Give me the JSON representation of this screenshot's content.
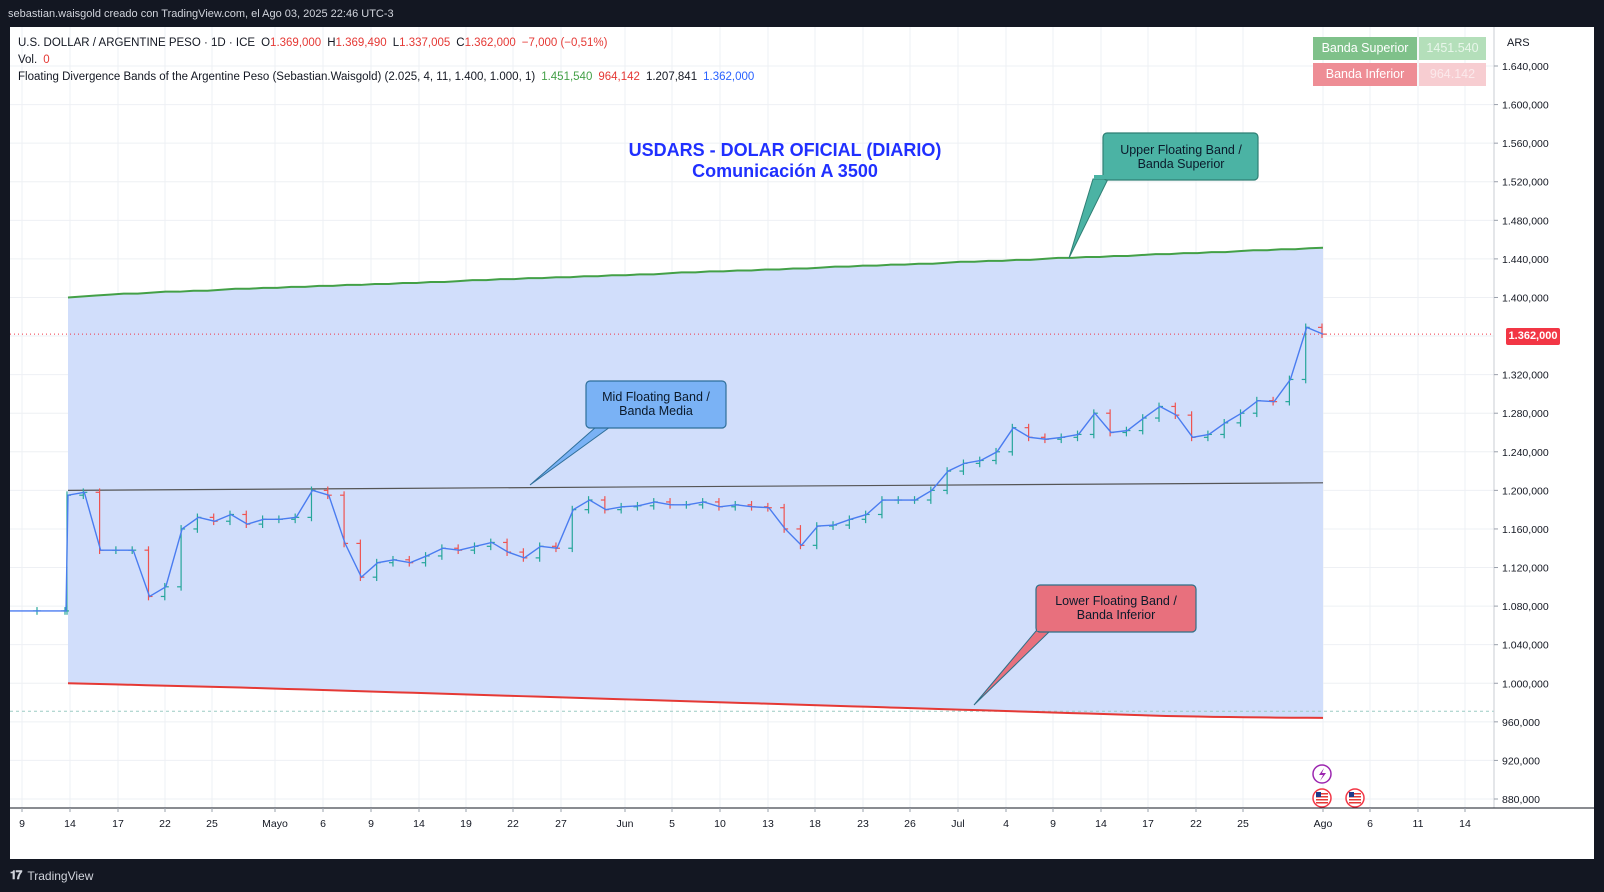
{
  "header": {
    "caption": "sebastian.waisgold creado con TradingView.com, el Ago 03, 2025 22:46 UTC-3"
  },
  "legend": {
    "symbol_line": {
      "symbol": "U.S. DOLLAR / ARGENTINE PESO · 1D · ICE",
      "open_label": "O",
      "open": "1.369,000",
      "high_label": "H",
      "high": "1.369,490",
      "low_label": "L",
      "low": "1.337,005",
      "close_label": "C",
      "close": "1.362,000",
      "change": "−7,000 (−0,51%)"
    },
    "volume_label": "Vol.",
    "volume_value": "0",
    "indicator_name": "Floating Divergence Bands of the Argentine Peso (Sebastian.Waisgold) (2.025, 4, 11, 1.400, 1.000, 1)",
    "indicator_values": [
      "1.451,540",
      "964,142",
      "1.207,841",
      "1.362,000"
    ]
  },
  "band_boxes": {
    "upper_label": "Banda Superior",
    "upper_value": "1451.540",
    "lower_label": "Banda Inferior",
    "lower_value": "964.142"
  },
  "price_scale": {
    "currency": "ARS",
    "last_price_label": "1.362,000",
    "ticks": [
      {
        "v": 1640,
        "label": "1.640,000"
      },
      {
        "v": 1600,
        "label": "1.600,000"
      },
      {
        "v": 1560,
        "label": "1.560,000"
      },
      {
        "v": 1520,
        "label": "1.520,000"
      },
      {
        "v": 1480,
        "label": "1.480,000"
      },
      {
        "v": 1440,
        "label": "1.440,000"
      },
      {
        "v": 1400,
        "label": "1.400,000"
      },
      {
        "v": 1320,
        "label": "1.320,000"
      },
      {
        "v": 1280,
        "label": "1.280,000"
      },
      {
        "v": 1240,
        "label": "1.240,000"
      },
      {
        "v": 1200,
        "label": "1.200,000"
      },
      {
        "v": 1160,
        "label": "1.160,000"
      },
      {
        "v": 1120,
        "label": "1.120,000"
      },
      {
        "v": 1080,
        "label": "1.080,000"
      },
      {
        "v": 1040,
        "label": "1.040,000"
      },
      {
        "v": 1000,
        "label": "1.000,000"
      },
      {
        "v": 960,
        "label": "960,000"
      },
      {
        "v": 920,
        "label": "920,000"
      },
      {
        "v": 880,
        "label": "880,000"
      }
    ]
  },
  "chart_title": {
    "line1": "USDARS - DOLAR OFICIAL (DIARIO)",
    "line2": "Comunicación A 3500"
  },
  "callouts": {
    "upper": {
      "line1": "Upper Floating Band /",
      "line2": "Banda Superior"
    },
    "mid": {
      "line1": "Mid Floating Band /",
      "line2": "Banda Media"
    },
    "lower": {
      "line1": "Lower Floating Band /",
      "line2": "Banda Inferior"
    }
  },
  "footer": {
    "brand": "TradingView"
  },
  "colors": {
    "upper_band": "#43a047",
    "lower_band": "#e53935",
    "mid_band": "#555555",
    "fill": "#cfdcfb",
    "price_line": "#4a7cf0",
    "up_bar": "#26a69a",
    "down_bar": "#ef5350",
    "upper_callout": "#4bb3a4",
    "mid_callout": "#7ab2f5",
    "lower_callout": "#e8707d"
  },
  "chart_data": {
    "type": "line",
    "title": "USDARS - DOLAR OFICIAL (DIARIO)",
    "subtitle": "Comunicación A 3500",
    "x_ticks": [
      "9",
      "14",
      "17",
      "22",
      "25",
      "Mayo",
      "6",
      "9",
      "14",
      "19",
      "22",
      "27",
      "Jun",
      "5",
      "10",
      "13",
      "18",
      "23",
      "26",
      "Jul",
      "4",
      "9",
      "14",
      "17",
      "22",
      "25",
      "Ago",
      "6",
      "11",
      "14"
    ],
    "ylim": [
      870,
      1660
    ],
    "series": [
      {
        "name": "Banda Superior",
        "values": [
          1400,
          1401,
          1402,
          1403,
          1404,
          1404,
          1405,
          1406,
          1406,
          1407,
          1407,
          1408,
          1409,
          1409,
          1410,
          1410,
          1411,
          1411,
          1412,
          1412,
          1413,
          1413,
          1414,
          1414,
          1415,
          1415,
          1416,
          1416,
          1417,
          1418,
          1418,
          1419,
          1419,
          1420,
          1420,
          1421,
          1421,
          1422,
          1422,
          1423,
          1423,
          1424,
          1424,
          1425,
          1426,
          1426,
          1427,
          1427,
          1428,
          1428,
          1429,
          1429,
          1430,
          1430,
          1431,
          1432,
          1432,
          1433,
          1433,
          1434,
          1434,
          1435,
          1435,
          1436,
          1437,
          1437,
          1438,
          1438,
          1439,
          1439,
          1440,
          1441,
          1441,
          1442,
          1442,
          1443,
          1443,
          1444,
          1445,
          1445,
          1446,
          1446,
          1447,
          1447,
          1448,
          1449,
          1449,
          1450,
          1450,
          1451,
          1451.54
        ]
      },
      {
        "name": "Banda Inferior",
        "values": [
          1000,
          999.6,
          999.2,
          998.8,
          998.4,
          998,
          997.6,
          997.2,
          996.8,
          996.4,
          996,
          995.6,
          995.1,
          994.6,
          994.1,
          993.6,
          993.1,
          992.6,
          992.1,
          991.6,
          991.1,
          990.6,
          990.1,
          989.6,
          989.1,
          988.6,
          988.1,
          987.6,
          987.1,
          986.6,
          986.1,
          985.6,
          985.1,
          984.6,
          984.1,
          983.6,
          983.1,
          982.6,
          982.1,
          981.6,
          981.1,
          980.6,
          980.1,
          979.6,
          979.1,
          978.6,
          978.1,
          977.6,
          977.1,
          976.6,
          976.1,
          975.6,
          975.1,
          974.6,
          974.1,
          973.6,
          973.1,
          972.6,
          972.1,
          971.6,
          971.1,
          970.6,
          970.1,
          969.6,
          969.1,
          968.6,
          968.1,
          967.6,
          967.1,
          966.6,
          966.1,
          965.8,
          965.5,
          965.2,
          965,
          964.8,
          964.6,
          964.4,
          964.3,
          964.2,
          964.142
        ]
      },
      {
        "name": "Banda Media",
        "values": [
          1200,
          1207.841
        ]
      },
      {
        "name": "U.S. DOLLAR / ARGENTINE PESO",
        "values": [
          1075,
          1075,
          1075,
          1195,
          1198,
          1138,
          1138,
          1138,
          1090,
          1100,
          1160,
          1172,
          1168,
          1175,
          1165,
          1170,
          1170,
          1172,
          1200,
          1195,
          1145,
          1110,
          1125,
          1128,
          1125,
          1132,
          1140,
          1138,
          1142,
          1146,
          1136,
          1130,
          1142,
          1140,
          1180,
          1190,
          1180,
          1183,
          1184,
          1188,
          1185,
          1185,
          1188,
          1183,
          1185,
          1183,
          1182,
          1160,
          1143,
          1163,
          1164,
          1170,
          1175,
          1190,
          1190,
          1190,
          1200,
          1220,
          1228,
          1231,
          1240,
          1265,
          1255,
          1253,
          1255,
          1258,
          1280,
          1260,
          1262,
          1275,
          1287,
          1278,
          1255,
          1258,
          1270,
          1280,
          1293,
          1292,
          1315,
          1369,
          1362
        ]
      }
    ]
  }
}
